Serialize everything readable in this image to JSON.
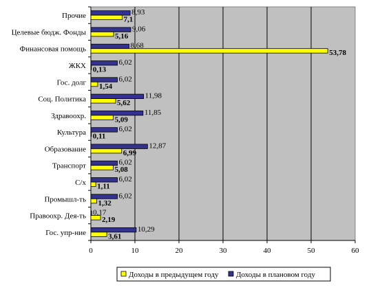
{
  "chart_data": {
    "type": "bar",
    "orientation": "horizontal",
    "categories": [
      "Прочие",
      "Целевые бюдж. Фонды",
      "Финансовая помощь",
      "ЖКХ",
      "Гос. долг",
      "Соц. Политика",
      "Здравоохр.",
      "Культура",
      "Образование",
      "Транспорт",
      "С/х",
      "Промышл-ть",
      "Правоохр. Дея-ть",
      "Гос. упр-ние"
    ],
    "series": [
      {
        "name": "Доходы в предыдущем году",
        "color": "#ffff00",
        "values": [
          7.1,
          5.16,
          53.78,
          0.13,
          1.54,
          5.62,
          5.09,
          0.11,
          6.99,
          5.08,
          1.11,
          1.32,
          2.19,
          3.61
        ],
        "labels": [
          "7,1",
          "5,16",
          "53,78",
          "0,13",
          "1,54",
          "5,62",
          "5,09",
          "0,11",
          "6,99",
          "5,08",
          "1,11",
          "1,32",
          "2,19",
          "3,61"
        ]
      },
      {
        "name": "Доходы в плановом году",
        "color": "#33338f",
        "values": [
          8.93,
          9.06,
          8.68,
          6.02,
          6.02,
          11.98,
          11.85,
          6.02,
          12.87,
          6.02,
          6.02,
          6.02,
          0.17,
          10.29
        ],
        "labels": [
          "8,93",
          "9,06",
          "8,68",
          "6,02",
          "6,02",
          "11,98",
          "11,85",
          "6,02",
          "12,87",
          "6,02",
          "6,02",
          "6,02",
          "0,17",
          "10,29"
        ]
      }
    ],
    "xlim": [
      0,
      60
    ],
    "xticks": [
      "0",
      "10",
      "20",
      "30",
      "40",
      "50",
      "60"
    ],
    "plot_background": "#c0c0c0",
    "grid": true,
    "legend_position": "bottom"
  }
}
